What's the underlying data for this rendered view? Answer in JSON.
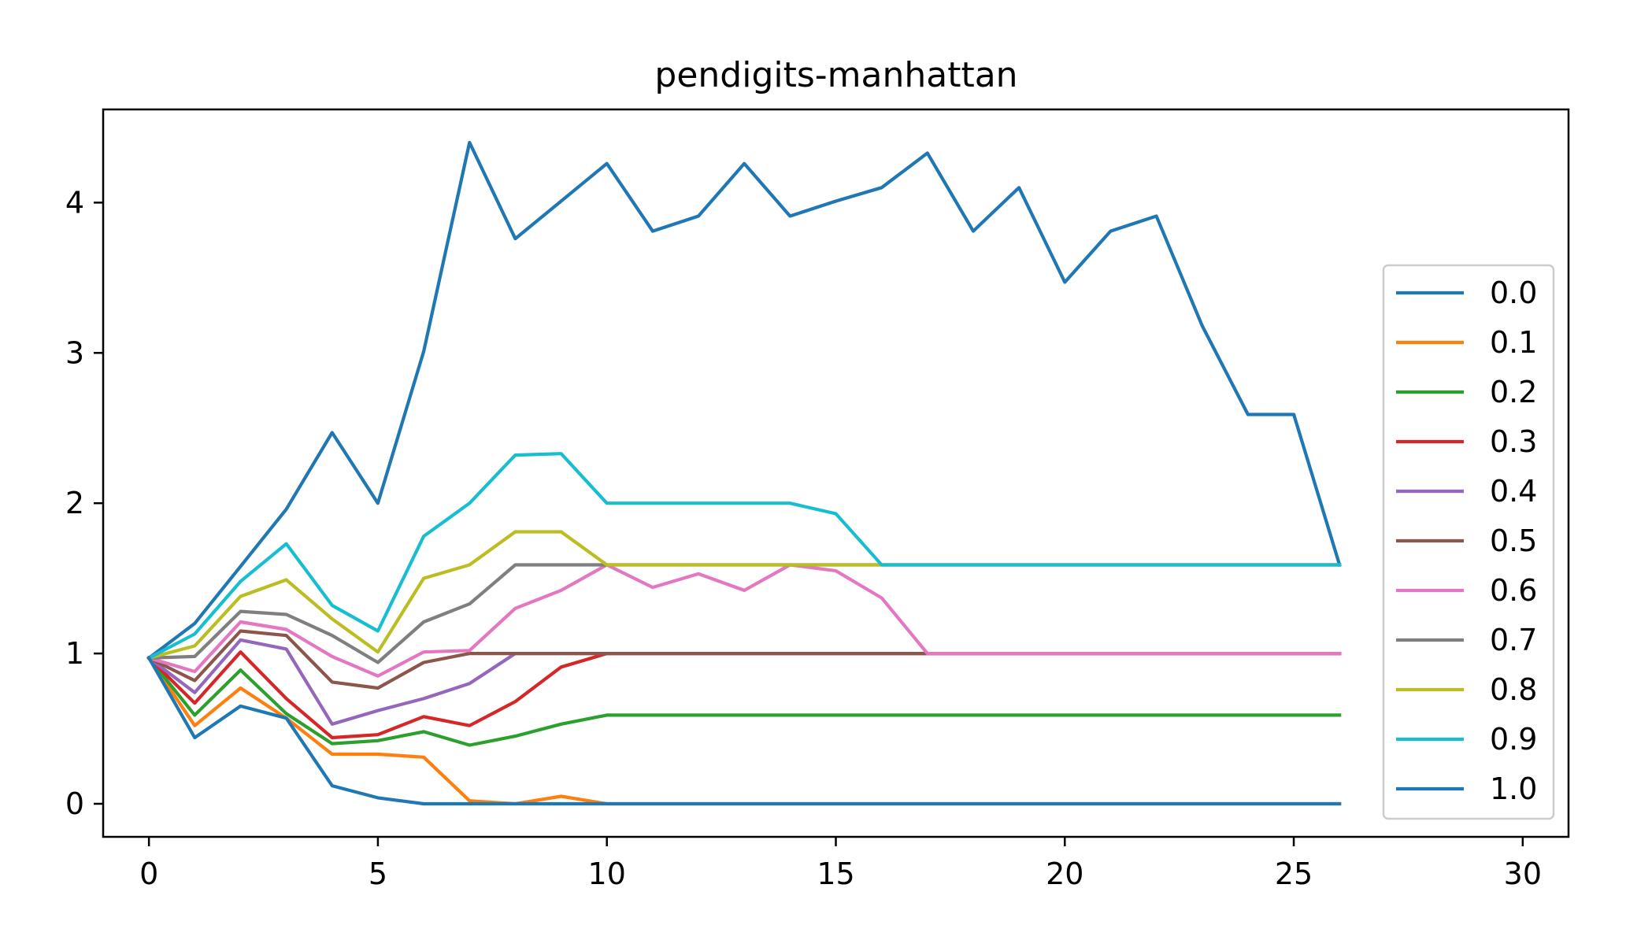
{
  "chart_data": {
    "type": "line",
    "title": "pendigits-manhattan",
    "xlabel": "",
    "ylabel": "",
    "xlim": [
      -1,
      31
    ],
    "ylim": [
      -0.22,
      4.62
    ],
    "xticks": [
      0,
      5,
      10,
      15,
      20,
      25,
      30
    ],
    "yticks": [
      0,
      1,
      2,
      3,
      4
    ],
    "grid": false,
    "legend_position": "center-right",
    "x": [
      0,
      1,
      2,
      3,
      4,
      5,
      6,
      7,
      8,
      9,
      10,
      11,
      12,
      13,
      14,
      15,
      16,
      17,
      18,
      19,
      20,
      21,
      22,
      23,
      24,
      25,
      26
    ],
    "series": [
      {
        "name": "0.0",
        "color": "#1f77b4",
        "values": [
          0.97,
          1.2,
          1.58,
          1.96,
          2.47,
          2.0,
          3.01,
          4.4,
          3.76,
          4.01,
          4.26,
          3.81,
          3.91,
          4.26,
          3.91,
          4.01,
          4.1,
          4.33,
          3.81,
          4.1,
          3.47,
          3.81,
          3.91,
          3.18,
          2.59,
          2.59,
          1.59
        ]
      },
      {
        "name": "0.1",
        "color": "#ff7f0e",
        "values": [
          0.97,
          0.52,
          0.77,
          0.57,
          0.33,
          0.33,
          0.31,
          0.02,
          0.0,
          0.05,
          0.0,
          0.0,
          0.0,
          0.0,
          0.0,
          0.0,
          0.0,
          0.0,
          0.0,
          0.0,
          0.0,
          0.0,
          0.0,
          0.0,
          0.0,
          0.0,
          0.0
        ]
      },
      {
        "name": "0.2",
        "color": "#2ca02c",
        "values": [
          0.97,
          0.59,
          0.89,
          0.6,
          0.4,
          0.42,
          0.48,
          0.39,
          0.45,
          0.53,
          0.59,
          0.59,
          0.59,
          0.59,
          0.59,
          0.59,
          0.59,
          0.59,
          0.59,
          0.59,
          0.59,
          0.59,
          0.59,
          0.59,
          0.59,
          0.59,
          0.59
        ]
      },
      {
        "name": "0.3",
        "color": "#d62728",
        "values": [
          0.97,
          0.67,
          1.01,
          0.7,
          0.44,
          0.46,
          0.58,
          0.52,
          0.68,
          0.91,
          1.0,
          1.0,
          1.0,
          1.0,
          1.0,
          1.0,
          1.0,
          1.0,
          1.0,
          1.0,
          1.0,
          1.0,
          1.0,
          1.0,
          1.0,
          1.0,
          1.0
        ]
      },
      {
        "name": "0.4",
        "color": "#9467bd",
        "values": [
          0.97,
          0.74,
          1.09,
          1.03,
          0.53,
          0.62,
          0.7,
          0.8,
          1.0,
          1.0,
          1.0,
          1.0,
          1.0,
          1.0,
          1.0,
          1.0,
          1.0,
          1.0,
          1.0,
          1.0,
          1.0,
          1.0,
          1.0,
          1.0,
          1.0,
          1.0,
          1.0
        ]
      },
      {
        "name": "0.5",
        "color": "#8c564b",
        "values": [
          0.97,
          0.82,
          1.15,
          1.12,
          0.81,
          0.77,
          0.94,
          1.0,
          1.0,
          1.0,
          1.0,
          1.0,
          1.0,
          1.0,
          1.0,
          1.0,
          1.0,
          1.0,
          1.0,
          1.0,
          1.0,
          1.0,
          1.0,
          1.0,
          1.0,
          1.0,
          1.0
        ]
      },
      {
        "name": "0.6",
        "color": "#e377c2",
        "values": [
          0.97,
          0.88,
          1.21,
          1.16,
          0.98,
          0.85,
          1.01,
          1.02,
          1.3,
          1.42,
          1.59,
          1.44,
          1.53,
          1.42,
          1.59,
          1.55,
          1.37,
          1.0,
          1.0,
          1.0,
          1.0,
          1.0,
          1.0,
          1.0,
          1.0,
          1.0,
          1.0
        ]
      },
      {
        "name": "0.7",
        "color": "#7f7f7f",
        "values": [
          0.97,
          0.98,
          1.28,
          1.26,
          1.12,
          0.94,
          1.21,
          1.33,
          1.59,
          1.59,
          1.59,
          1.59,
          1.59,
          1.59,
          1.59,
          1.59,
          1.59,
          1.59,
          1.59,
          1.59,
          1.59,
          1.59,
          1.59,
          1.59,
          1.59,
          1.59,
          1.59
        ]
      },
      {
        "name": "0.8",
        "color": "#bcbd22",
        "values": [
          0.97,
          1.05,
          1.38,
          1.49,
          1.23,
          1.01,
          1.5,
          1.59,
          1.81,
          1.81,
          1.59,
          1.59,
          1.59,
          1.59,
          1.59,
          1.59,
          1.59,
          1.59,
          1.59,
          1.59,
          1.59,
          1.59,
          1.59,
          1.59,
          1.59,
          1.59,
          1.59
        ]
      },
      {
        "name": "0.9",
        "color": "#17becf",
        "values": [
          0.97,
          1.13,
          1.48,
          1.73,
          1.32,
          1.15,
          1.78,
          2.0,
          2.32,
          2.33,
          2.0,
          2.0,
          2.0,
          2.0,
          2.0,
          1.93,
          1.59,
          1.59,
          1.59,
          1.59,
          1.59,
          1.59,
          1.59,
          1.59,
          1.59,
          1.59,
          1.59
        ]
      },
      {
        "name": "1.0",
        "color": "#1f77b4",
        "values": [
          0.97,
          0.44,
          0.65,
          0.57,
          0.12,
          0.04,
          0.0,
          0.0,
          0.0,
          0.0,
          0.0,
          0.0,
          0.0,
          0.0,
          0.0,
          0.0,
          0.0,
          0.0,
          0.0,
          0.0,
          0.0,
          0.0,
          0.0,
          0.0,
          0.0,
          0.0,
          0.0
        ]
      }
    ]
  }
}
